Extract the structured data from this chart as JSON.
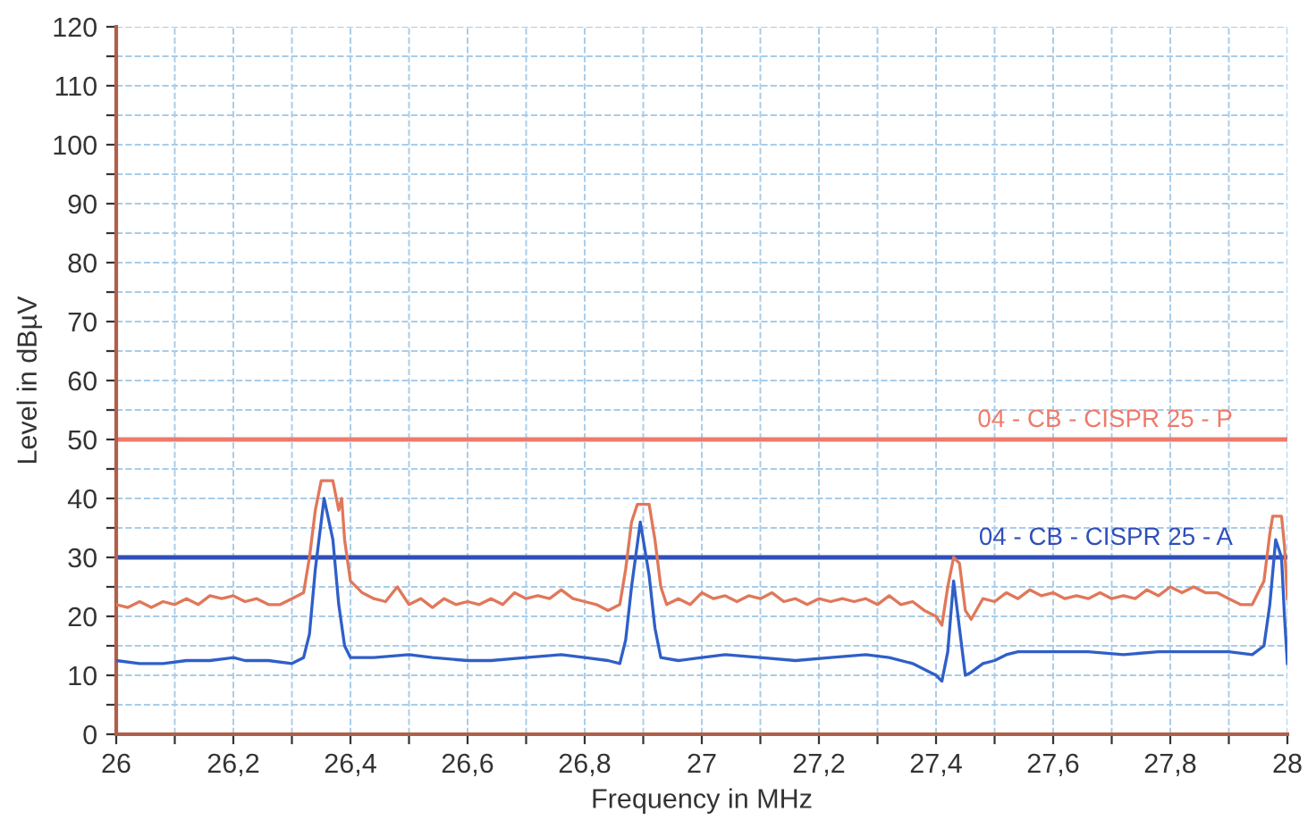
{
  "chart_data": {
    "type": "line",
    "xlabel": "Frequency in MHz",
    "ylabel": "Level in dBµV",
    "xlim": [
      26,
      28
    ],
    "ylim": [
      0,
      120
    ],
    "xticks": [
      {
        "value": 26,
        "label": "26"
      },
      {
        "value": 26.1,
        "label": null
      },
      {
        "value": 26.2,
        "label": "26,2"
      },
      {
        "value": 26.3,
        "label": null
      },
      {
        "value": 26.4,
        "label": "26,4"
      },
      {
        "value": 26.5,
        "label": null
      },
      {
        "value": 26.6,
        "label": "26,6"
      },
      {
        "value": 26.7,
        "label": null
      },
      {
        "value": 26.8,
        "label": "26,8"
      },
      {
        "value": 26.9,
        "label": null
      },
      {
        "value": 27,
        "label": "27"
      },
      {
        "value": 27.1,
        "label": null
      },
      {
        "value": 27.2,
        "label": "27,2"
      },
      {
        "value": 27.3,
        "label": null
      },
      {
        "value": 27.4,
        "label": "27,4"
      },
      {
        "value": 27.5,
        "label": null
      },
      {
        "value": 27.6,
        "label": "27,6"
      },
      {
        "value": 27.7,
        "label": null
      },
      {
        "value": 27.8,
        "label": "27,8"
      },
      {
        "value": 27.9,
        "label": null
      },
      {
        "value": 28,
        "label": "28"
      }
    ],
    "yticks": [
      0,
      {
        "value": 5,
        "label": null
      },
      10,
      {
        "value": 15,
        "label": null
      },
      20,
      {
        "value": 25,
        "label": null
      },
      30,
      {
        "value": 35,
        "label": null
      },
      40,
      {
        "value": 45,
        "label": null
      },
      50,
      {
        "value": 55,
        "label": null
      },
      60,
      {
        "value": 65,
        "label": null
      },
      70,
      {
        "value": 75,
        "label": null
      },
      80,
      {
        "value": 85,
        "label": null
      },
      90,
      {
        "value": 95,
        "label": null
      },
      100,
      {
        "value": 105,
        "label": null
      },
      110,
      {
        "value": 115,
        "label": null
      },
      120
    ],
    "grid": true,
    "marker": "none",
    "line_style": "solid",
    "series": [
      {
        "color": "#e0785a",
        "x": [
          26.0,
          26.02,
          26.04,
          26.06,
          26.08,
          26.1,
          26.12,
          26.14,
          26.16,
          26.18,
          26.2,
          26.22,
          26.24,
          26.26,
          26.28,
          26.3,
          26.32,
          26.33,
          26.34,
          26.35,
          26.37,
          26.38,
          26.385,
          26.39,
          26.4,
          26.42,
          26.44,
          26.46,
          26.48,
          26.5,
          26.52,
          26.54,
          26.56,
          26.58,
          26.6,
          26.62,
          26.64,
          26.66,
          26.68,
          26.7,
          26.72,
          26.74,
          26.76,
          26.78,
          26.8,
          26.82,
          26.84,
          26.86,
          26.87,
          26.88,
          26.89,
          26.91,
          26.92,
          26.93,
          26.94,
          26.96,
          26.98,
          27.0,
          27.02,
          27.04,
          27.06,
          27.08,
          27.1,
          27.12,
          27.14,
          27.16,
          27.18,
          27.2,
          27.22,
          27.24,
          27.26,
          27.28,
          27.3,
          27.32,
          27.34,
          27.36,
          27.38,
          27.4,
          27.41,
          27.42,
          27.43,
          27.44,
          27.45,
          27.46,
          27.48,
          27.5,
          27.52,
          27.54,
          27.56,
          27.58,
          27.6,
          27.62,
          27.64,
          27.66,
          27.68,
          27.7,
          27.72,
          27.74,
          27.76,
          27.78,
          27.8,
          27.82,
          27.84,
          27.86,
          27.88,
          27.9,
          27.92,
          27.94,
          27.96,
          27.97,
          27.975,
          27.99,
          27.995,
          28.0
        ],
        "values": [
          22,
          21.5,
          22.5,
          21.5,
          22.5,
          22,
          23,
          22,
          23.5,
          23,
          23.5,
          22.5,
          23,
          22,
          22,
          23,
          24,
          30,
          38,
          43,
          43,
          38,
          40,
          33,
          26,
          24,
          23,
          22.5,
          25,
          22,
          23,
          21.5,
          23,
          22,
          22.5,
          22,
          23,
          22,
          24,
          23,
          23.5,
          23,
          24.5,
          23,
          22.5,
          22,
          21,
          22,
          28,
          36,
          39,
          39,
          33,
          25,
          22,
          23,
          22,
          24,
          23,
          23.5,
          22.5,
          23.5,
          23,
          24,
          22.5,
          23,
          22,
          23,
          22.5,
          23,
          22.5,
          23,
          22,
          23.5,
          22,
          22.5,
          21,
          20,
          18.5,
          25,
          30,
          29,
          21,
          19.5,
          23,
          22.5,
          24,
          23,
          24.5,
          23.5,
          24,
          23,
          23.5,
          23,
          24,
          23,
          23.5,
          23,
          24.5,
          23.5,
          25,
          24,
          25,
          24,
          24,
          23,
          22,
          22,
          26,
          34,
          37,
          37,
          32,
          23
        ]
      },
      {
        "color": "#2f5fc8",
        "x": [
          26.0,
          26.04,
          26.08,
          26.12,
          26.16,
          26.2,
          26.22,
          26.26,
          26.3,
          26.32,
          26.33,
          26.34,
          26.355,
          26.37,
          26.38,
          26.39,
          26.4,
          26.44,
          26.5,
          26.54,
          26.6,
          26.64,
          26.7,
          26.76,
          26.8,
          26.84,
          26.86,
          26.87,
          26.88,
          26.895,
          26.91,
          26.92,
          26.93,
          26.96,
          27.0,
          27.04,
          27.1,
          27.16,
          27.22,
          27.28,
          27.32,
          27.36,
          27.4,
          27.41,
          27.42,
          27.43,
          27.44,
          27.45,
          27.46,
          27.48,
          27.5,
          27.52,
          27.54,
          27.6,
          27.66,
          27.72,
          27.78,
          27.84,
          27.9,
          27.94,
          27.96,
          27.97,
          27.98,
          27.99,
          27.995,
          28.0
        ],
        "values": [
          12.5,
          12,
          12,
          12.5,
          12.5,
          13,
          12.5,
          12.5,
          12,
          13,
          17,
          28,
          40,
          33,
          22,
          15,
          13,
          13,
          13.5,
          13,
          12.5,
          12.5,
          13,
          13.5,
          13,
          12.5,
          12,
          16,
          25,
          36,
          27,
          18,
          13,
          12.5,
          13,
          13.5,
          13,
          12.5,
          13,
          13.5,
          13,
          12,
          10,
          9,
          14,
          26,
          18,
          10,
          10.5,
          12,
          12.5,
          13.5,
          14,
          14,
          14,
          13.5,
          14,
          14,
          14,
          13.5,
          15,
          22,
          33,
          30,
          20,
          12
        ]
      }
    ],
    "ref_lines": [
      {
        "axis": "y",
        "value": 50,
        "label": "04 - CB - CISPR 25 - P",
        "color": "#ee7a6a"
      },
      {
        "axis": "y",
        "value": 30,
        "label": "04 - CB - CISPR 25 - A",
        "color": "#2f4fb8"
      }
    ]
  }
}
